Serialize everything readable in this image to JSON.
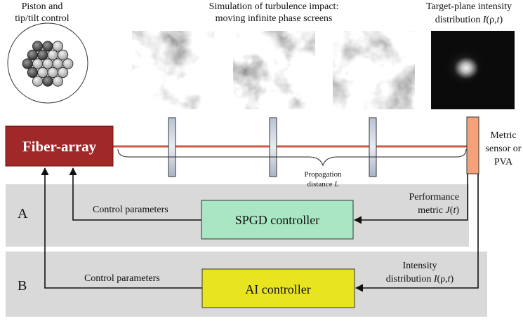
{
  "top": {
    "piston_line1": "Piston and",
    "piston_line2": "tip/tilt control",
    "turb_line1": "Simulation of turbulence impact:",
    "turb_line2": "moving infinite phase screens",
    "target_line1": "Target-plane intensity",
    "target_line2_prefix": "distribution ",
    "target_var": "I",
    "target_args": "(ρ,",
    "target_t": "t",
    "target_close": ")"
  },
  "fiber_array_label": "Fiber-array",
  "metric_sensor": {
    "line1": "Metric",
    "line2": "sensor or",
    "line3": "PVA"
  },
  "propagation": {
    "line1": "Propagation",
    "line2_prefix": "distance ",
    "line2_var": "L"
  },
  "panel_a": {
    "letter": "A",
    "controller_label": "SPGD controller",
    "control_params": "Control parameters",
    "perf_line1": "Performance",
    "perf_line2_prefix": "metric ",
    "perf_var": "J",
    "perf_args": "(",
    "perf_t": "t",
    "perf_close": ")"
  },
  "panel_b": {
    "letter": "B",
    "controller_label": "AI controller",
    "control_params": "Control parameters",
    "int_line1": "Intensity",
    "int_line2_prefix": "distribution ",
    "int_var": "I",
    "int_args": "(ρ,",
    "int_t": "t",
    "int_close": ")"
  },
  "colors": {
    "fiber_array": "#a02828",
    "beam_line": "#c85a4a",
    "spgd_box": "#a9e6c3",
    "ai_box": "#e8e41f",
    "sensor": "#f5a27a",
    "panel_bg": "#d9d9d9"
  }
}
